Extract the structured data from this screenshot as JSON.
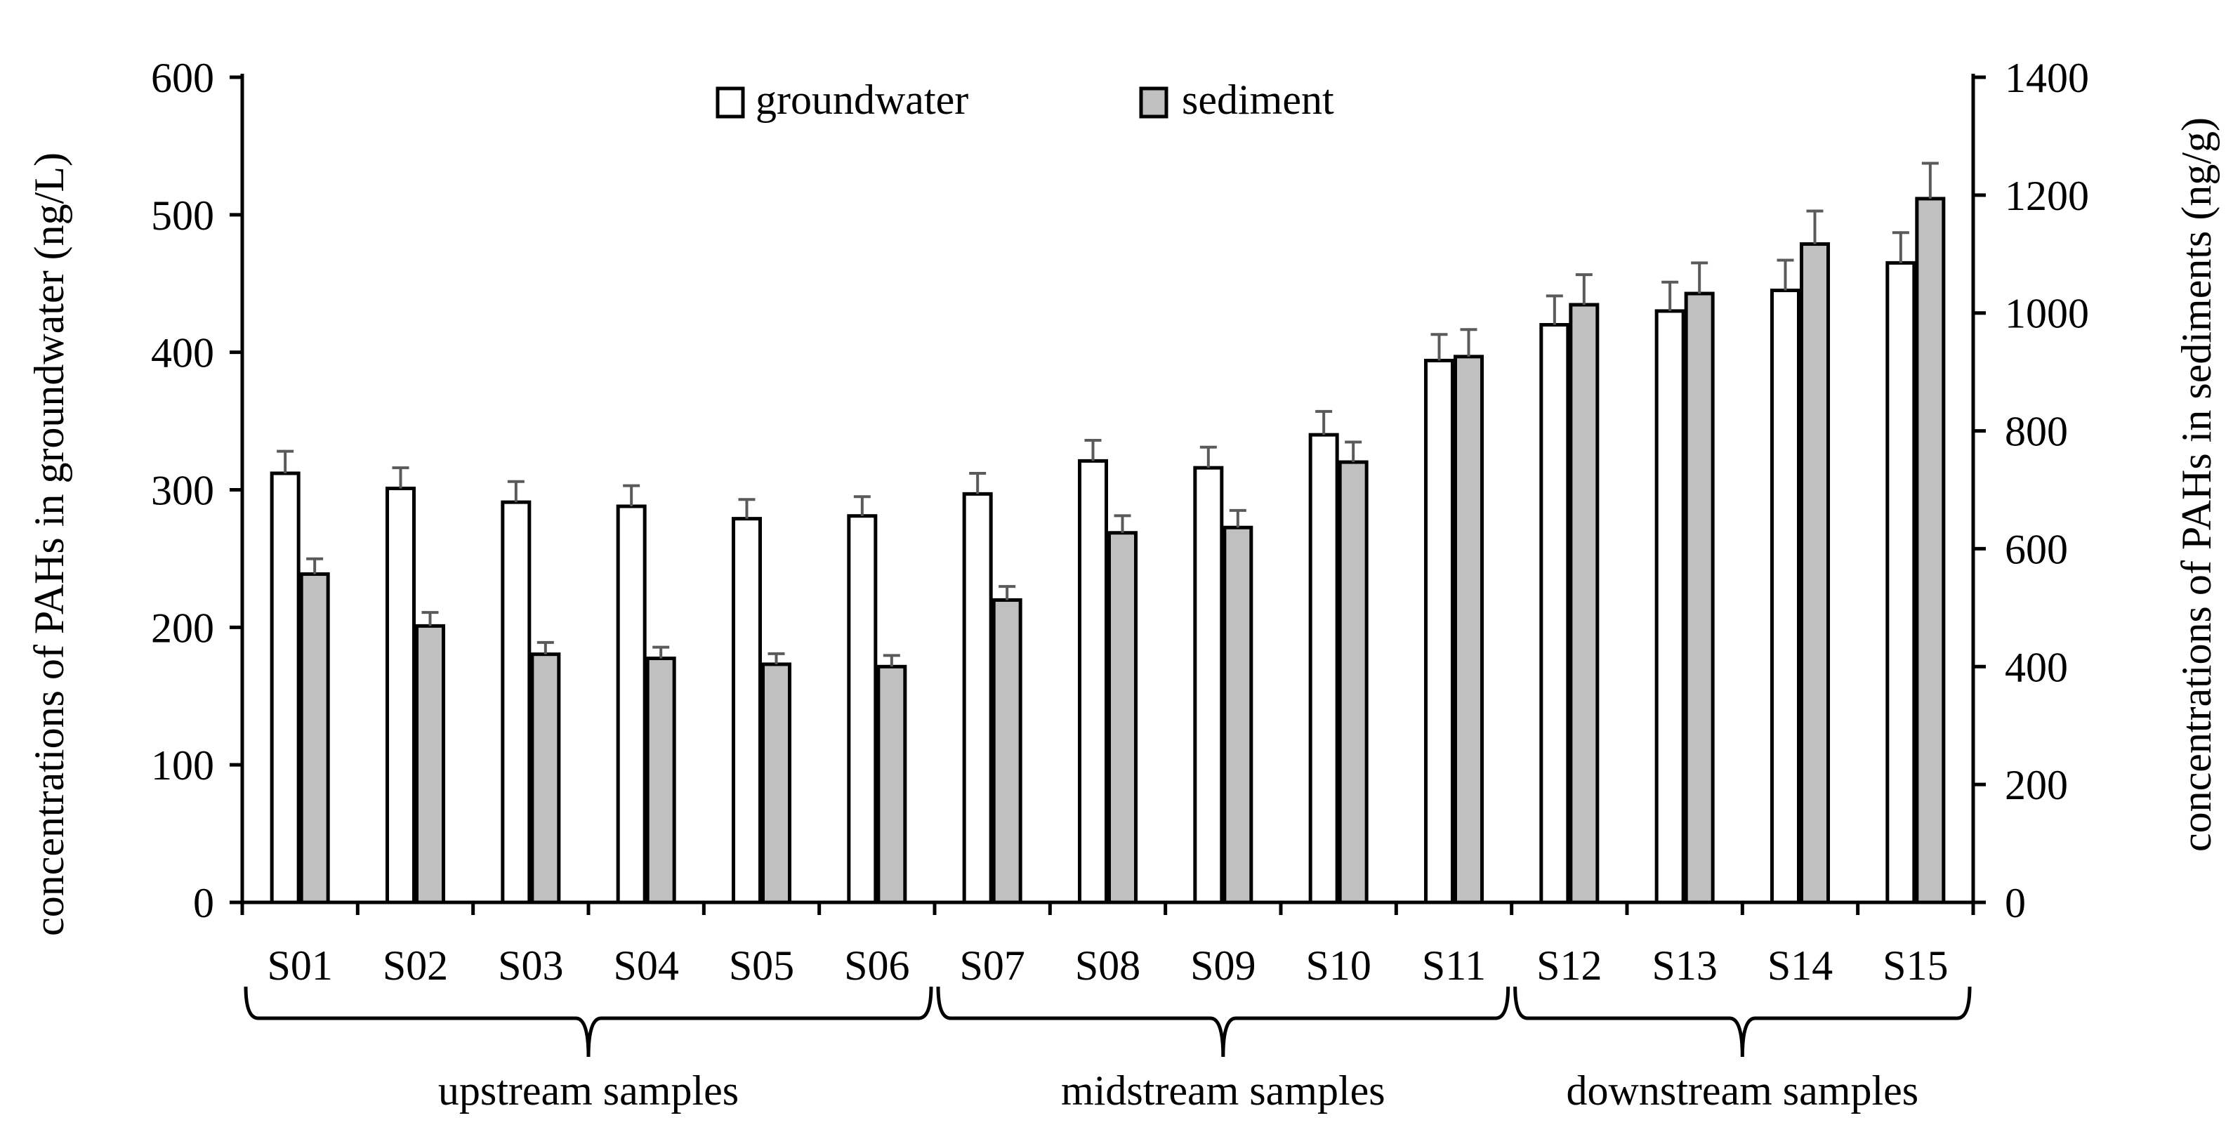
{
  "chart_data": {
    "type": "bar",
    "categories": [
      "S01",
      "S02",
      "S03",
      "S04",
      "S05",
      "S06",
      "S07",
      "S08",
      "S09",
      "S10",
      "S11",
      "S12",
      "S13",
      "S14",
      "S15"
    ],
    "series": [
      {
        "name": "groundwater",
        "axis": "left",
        "color": "#ffffff",
        "values": [
          312,
          301,
          291,
          288,
          279,
          281,
          297,
          321,
          316,
          340,
          394,
          420,
          430,
          445,
          465
        ],
        "errors": [
          16,
          15,
          15,
          15,
          14,
          14,
          15,
          15,
          15,
          17,
          19,
          21,
          21,
          22,
          22
        ]
      },
      {
        "name": "sediment",
        "axis": "right",
        "color": "#c0c0c0",
        "values": [
          557,
          469,
          421,
          414,
          404,
          400,
          513,
          627,
          636,
          747,
          926,
          1014,
          1033,
          1117,
          1194
        ],
        "errors": [
          26,
          23,
          20,
          19,
          18,
          19,
          23,
          29,
          29,
          34,
          46,
          51,
          52,
          56,
          60
        ]
      }
    ],
    "ylabel": "concentrations of PAHs in groundwater (ng/L)",
    "y2label": "concentrations of PAHs in sediments (ng/g)",
    "ylim": [
      0,
      600
    ],
    "y2lim": [
      0,
      1400
    ],
    "yticks": [
      "0",
      "100",
      "200",
      "300",
      "400",
      "500",
      "600"
    ],
    "y2ticks": [
      "0",
      "200",
      "400",
      "600",
      "800",
      "1000",
      "1200",
      "1400"
    ],
    "groups": [
      {
        "label": "upstream samples",
        "from": 0,
        "to": 5
      },
      {
        "label": "midstream samples",
        "from": 6,
        "to": 10
      },
      {
        "label": "downstream samples",
        "from": 11,
        "to": 14
      }
    ],
    "legend_position": "top-center",
    "grid": false
  }
}
